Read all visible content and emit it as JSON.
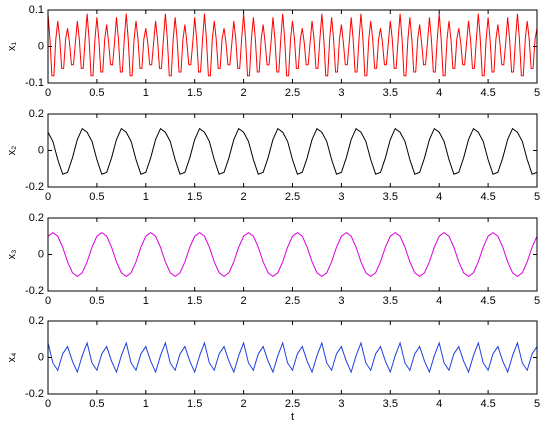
{
  "chart_data": [
    {
      "type": "line",
      "ylabel": "x₁",
      "color": "#ff0000",
      "x": [
        0,
        0.02,
        0.04,
        0.06,
        0.08,
        0.1,
        0.12,
        0.14,
        0.16,
        0.18,
        0.2,
        0.22,
        0.24,
        0.26,
        0.28,
        0.3,
        0.32,
        0.34,
        0.36,
        0.38,
        0.4,
        0.42,
        0.44,
        0.46,
        0.48,
        0.5,
        0.52,
        0.54,
        0.56,
        0.58,
        0.6,
        0.62,
        0.64,
        0.66,
        0.68,
        0.7,
        0.72,
        0.74,
        0.76,
        0.78,
        0.8,
        0.82,
        0.84,
        0.86,
        0.88,
        0.9,
        0.92,
        0.94,
        0.96,
        0.98,
        1,
        1.02,
        1.04,
        1.06,
        1.08,
        1.1,
        1.12,
        1.14,
        1.16,
        1.18,
        1.2,
        1.22,
        1.24,
        1.26,
        1.28,
        1.3,
        1.32,
        1.34,
        1.36,
        1.38,
        1.4,
        1.42,
        1.44,
        1.46,
        1.48,
        1.5,
        1.52,
        1.54,
        1.56,
        1.58,
        1.6,
        1.62,
        1.64,
        1.66,
        1.68,
        1.7,
        1.72,
        1.74,
        1.76,
        1.78,
        1.8,
        1.82,
        1.84,
        1.86,
        1.88,
        1.9,
        1.92,
        1.94,
        1.96,
        1.98,
        2,
        2.02,
        2.04,
        2.06,
        2.08,
        2.1,
        2.12,
        2.14,
        2.16,
        2.18,
        2.2,
        2.22,
        2.24,
        2.26,
        2.28,
        2.3,
        2.32,
        2.34,
        2.36,
        2.38,
        2.4,
        2.42,
        2.44,
        2.46,
        2.48,
        2.5,
        2.52,
        2.54,
        2.56,
        2.58,
        2.6,
        2.62,
        2.64,
        2.66,
        2.68,
        2.7,
        2.72,
        2.74,
        2.76,
        2.78,
        2.8,
        2.82,
        2.84,
        2.86,
        2.88,
        2.9,
        2.92,
        2.94,
        2.96,
        2.98,
        3,
        3.02,
        3.04,
        3.06,
        3.08,
        3.1,
        3.12,
        3.14,
        3.16,
        3.18,
        3.2,
        3.22,
        3.24,
        3.26,
        3.28,
        3.3,
        3.32,
        3.34,
        3.36,
        3.38,
        3.4,
        3.42,
        3.44,
        3.46,
        3.48,
        3.5,
        3.52,
        3.54,
        3.56,
        3.58,
        3.6,
        3.62,
        3.64,
        3.66,
        3.68,
        3.7,
        3.72,
        3.74,
        3.76,
        3.78,
        3.8,
        3.82,
        3.84,
        3.86,
        3.88,
        3.9,
        3.92,
        3.94,
        3.96,
        3.98,
        4,
        4.02,
        4.04,
        4.06,
        4.08,
        4.1,
        4.12,
        4.14,
        4.16,
        4.18,
        4.2,
        4.22,
        4.24,
        4.26,
        4.28,
        4.3,
        4.32,
        4.34,
        4.36,
        4.38,
        4.4,
        4.42,
        4.44,
        4.46,
        4.48,
        4.5,
        4.52,
        4.54,
        4.56,
        4.58,
        4.6,
        4.62,
        4.64,
        4.66,
        4.68,
        4.7,
        4.72,
        4.74,
        4.76,
        4.78,
        4.8,
        4.82,
        4.84,
        4.86,
        4.88,
        4.9,
        4.92,
        4.94,
        4.96,
        4.98,
        5
      ],
      "values": [
        0.09,
        0.02,
        -0.08,
        -0.08,
        0.02,
        0.07,
        0.02,
        -0.06,
        -0.06,
        0.02,
        0.05,
        0.01,
        -0.05,
        -0.05,
        0.01,
        0.07,
        0.02,
        -0.06,
        -0.06,
        0.02,
        0.09,
        0.02,
        -0.08,
        -0.08,
        0.02,
        0.08,
        0.02,
        -0.07,
        -0.07,
        0.02,
        0.06,
        0.01,
        -0.05,
        -0.05,
        0.01,
        0.08,
        0.02,
        -0.07,
        -0.07,
        0.02,
        0.09,
        0.02,
        -0.08,
        -0.08,
        0.02,
        0.07,
        0.02,
        -0.06,
        -0.06,
        0.02,
        0.05,
        0.01,
        -0.05,
        -0.05,
        0.01,
        0.07,
        0.02,
        -0.06,
        -0.06,
        0.02,
        0.09,
        0.02,
        -0.08,
        -0.08,
        0.02,
        0.08,
        0.02,
        -0.07,
        -0.07,
        0.02,
        0.06,
        0.01,
        -0.05,
        -0.05,
        0.01,
        0.08,
        0.02,
        -0.07,
        -0.07,
        0.02,
        0.09,
        0.02,
        -0.08,
        -0.08,
        0.02,
        0.07,
        0.02,
        -0.06,
        -0.06,
        0.02,
        0.05,
        0.01,
        -0.05,
        -0.05,
        0.01,
        0.07,
        0.02,
        -0.06,
        -0.06,
        0.02,
        0.09,
        0.02,
        -0.08,
        -0.08,
        0.02,
        0.08,
        0.02,
        -0.07,
        -0.07,
        0.02,
        0.06,
        0.01,
        -0.05,
        -0.05,
        0.01,
        0.08,
        0.02,
        -0.07,
        -0.07,
        0.02,
        0.09,
        0.02,
        -0.08,
        -0.08,
        0.02,
        0.07,
        0.02,
        -0.06,
        -0.06,
        0.02,
        0.05,
        0.01,
        -0.05,
        -0.05,
        0.01,
        0.07,
        0.02,
        -0.06,
        -0.06,
        0.02,
        0.09,
        0.02,
        -0.08,
        -0.08,
        0.02,
        0.08,
        0.02,
        -0.07,
        -0.07,
        0.02,
        0.06,
        0.01,
        -0.05,
        -0.05,
        0.01,
        0.08,
        0.02,
        -0.07,
        -0.07,
        0.02,
        0.09,
        0.02,
        -0.08,
        -0.08,
        0.02,
        0.07,
        0.02,
        -0.06,
        -0.06,
        0.02,
        0.05,
        0.01,
        -0.05,
        -0.05,
        0.01,
        0.07,
        0.02,
        -0.06,
        -0.06,
        0.02,
        0.09,
        0.02,
        -0.08,
        -0.08,
        0.02,
        0.08,
        0.02,
        -0.07,
        -0.07,
        0.02,
        0.06,
        0.01,
        -0.05,
        -0.05,
        0.01,
        0.08,
        0.02,
        -0.07,
        -0.07,
        0.02,
        0.09,
        0.02,
        -0.08,
        -0.08,
        0.02,
        0.07,
        0.02,
        -0.06,
        -0.06,
        0.02,
        0.05,
        0.01,
        -0.05,
        -0.05,
        0.01,
        0.07,
        0.02,
        -0.06,
        -0.06,
        0.02,
        0.09,
        0.02,
        -0.08,
        -0.08,
        0.02,
        0.08,
        0.02,
        -0.07,
        -0.07,
        0.02,
        0.06,
        0.01,
        -0.05,
        -0.05,
        0.01,
        0.08,
        0.02,
        -0.07,
        -0.07,
        0.02,
        0.09,
        0.02,
        -0.08,
        -0.08,
        0.02,
        0.07,
        0.02,
        -0.06,
        -0.06,
        0.02,
        0.05
      ],
      "xlim": [
        0,
        5
      ],
      "xticks": [
        0,
        0.5,
        1,
        1.5,
        2,
        2.5,
        3,
        3.5,
        4,
        4.5,
        5
      ],
      "ylim": [
        -0.1,
        0.1
      ],
      "yticks": [
        -0.1,
        0,
        0.1
      ]
    },
    {
      "type": "line",
      "ylabel": "x₂",
      "color": "#000000",
      "x": [
        0,
        0.05,
        0.1,
        0.15,
        0.2,
        0.25,
        0.3,
        0.35,
        0.4,
        0.45,
        0.5,
        0.55,
        0.6,
        0.65,
        0.7,
        0.75,
        0.8,
        0.85,
        0.9,
        0.95,
        1,
        1.05,
        1.1,
        1.15,
        1.2,
        1.25,
        1.3,
        1.35,
        1.4,
        1.45,
        1.5,
        1.55,
        1.6,
        1.65,
        1.7,
        1.75,
        1.8,
        1.85,
        1.9,
        1.95,
        2,
        2.05,
        2.1,
        2.15,
        2.2,
        2.25,
        2.3,
        2.35,
        2.4,
        2.45,
        2.5,
        2.55,
        2.6,
        2.65,
        2.7,
        2.75,
        2.8,
        2.85,
        2.9,
        2.95,
        3,
        3.05,
        3.1,
        3.15,
        3.2,
        3.25,
        3.3,
        3.35,
        3.4,
        3.45,
        3.5,
        3.55,
        3.6,
        3.65,
        3.7,
        3.75,
        3.8,
        3.85,
        3.9,
        3.95,
        4,
        4.05,
        4.1,
        4.15,
        4.2,
        4.25,
        4.3,
        4.35,
        4.4,
        4.45,
        4.5,
        4.55,
        4.6,
        4.65,
        4.7,
        4.75,
        4.8,
        4.85,
        4.9,
        4.95,
        5
      ],
      "values": [
        0.1,
        0.05,
        -0.05,
        -0.13,
        -0.12,
        -0.04,
        0.06,
        0.12,
        0.1,
        0.05,
        -0.05,
        -0.13,
        -0.12,
        -0.04,
        0.06,
        0.12,
        0.1,
        0.05,
        -0.05,
        -0.13,
        -0.12,
        -0.04,
        0.06,
        0.12,
        0.1,
        0.05,
        -0.05,
        -0.13,
        -0.12,
        -0.04,
        0.06,
        0.12,
        0.1,
        0.05,
        -0.05,
        -0.13,
        -0.12,
        -0.04,
        0.06,
        0.12,
        0.1,
        0.05,
        -0.05,
        -0.13,
        -0.12,
        -0.04,
        0.06,
        0.12,
        0.1,
        0.05,
        -0.05,
        -0.13,
        -0.12,
        -0.04,
        0.06,
        0.12,
        0.1,
        0.05,
        -0.05,
        -0.13,
        -0.12,
        -0.04,
        0.06,
        0.12,
        0.1,
        0.05,
        -0.05,
        -0.13,
        -0.12,
        -0.04,
        0.06,
        0.12,
        0.1,
        0.05,
        -0.05,
        -0.13,
        -0.12,
        -0.04,
        0.06,
        0.12,
        0.1,
        0.05,
        -0.05,
        -0.13,
        -0.12,
        -0.04,
        0.06,
        0.12,
        0.1,
        0.05,
        -0.05,
        -0.13,
        -0.12,
        -0.04,
        0.06,
        0.12,
        0.1,
        0.05,
        -0.05,
        -0.13,
        -0.12
      ],
      "xlim": [
        0,
        5
      ],
      "xticks": [
        0,
        0.5,
        1,
        1.5,
        2,
        2.5,
        3,
        3.5,
        4,
        4.5,
        5
      ],
      "ylim": [
        -0.2,
        0.2
      ],
      "yticks": [
        -0.2,
        0,
        0.2
      ]
    },
    {
      "type": "line",
      "ylabel": "x₃",
      "color": "#dd00dd",
      "x": [
        0,
        0.05,
        0.1,
        0.15,
        0.2,
        0.25,
        0.3,
        0.35,
        0.4,
        0.45,
        0.5,
        0.55,
        0.6,
        0.65,
        0.7,
        0.75,
        0.8,
        0.85,
        0.9,
        0.95,
        1,
        1.05,
        1.1,
        1.15,
        1.2,
        1.25,
        1.3,
        1.35,
        1.4,
        1.45,
        1.5,
        1.55,
        1.6,
        1.65,
        1.7,
        1.75,
        1.8,
        1.85,
        1.9,
        1.95,
        2,
        2.05,
        2.1,
        2.15,
        2.2,
        2.25,
        2.3,
        2.35,
        2.4,
        2.45,
        2.5,
        2.55,
        2.6,
        2.65,
        2.7,
        2.75,
        2.8,
        2.85,
        2.9,
        2.95,
        3,
        3.05,
        3.1,
        3.15,
        3.2,
        3.25,
        3.3,
        3.35,
        3.4,
        3.45,
        3.5,
        3.55,
        3.6,
        3.65,
        3.7,
        3.75,
        3.8,
        3.85,
        3.9,
        3.95,
        4,
        4.05,
        4.1,
        4.15,
        4.2,
        4.25,
        4.3,
        4.35,
        4.4,
        4.45,
        4.5,
        4.55,
        4.6,
        4.65,
        4.7,
        4.75,
        4.8,
        4.85,
        4.9,
        4.95,
        5
      ],
      "values": [
        0.1,
        0.12,
        0.1,
        0.04,
        -0.04,
        -0.1,
        -0.12,
        -0.1,
        -0.04,
        0.04,
        0.1,
        0.12,
        0.1,
        0.04,
        -0.04,
        -0.1,
        -0.12,
        -0.1,
        -0.04,
        0.04,
        0.1,
        0.12,
        0.1,
        0.04,
        -0.04,
        -0.1,
        -0.12,
        -0.1,
        -0.04,
        0.04,
        0.1,
        0.12,
        0.1,
        0.04,
        -0.04,
        -0.1,
        -0.12,
        -0.1,
        -0.04,
        0.04,
        0.1,
        0.12,
        0.1,
        0.04,
        -0.04,
        -0.1,
        -0.12,
        -0.1,
        -0.04,
        0.04,
        0.1,
        0.12,
        0.1,
        0.04,
        -0.04,
        -0.1,
        -0.12,
        -0.1,
        -0.04,
        0.04,
        0.1,
        0.12,
        0.1,
        0.04,
        -0.04,
        -0.1,
        -0.12,
        -0.1,
        -0.04,
        0.04,
        0.1,
        0.12,
        0.1,
        0.04,
        -0.04,
        -0.1,
        -0.12,
        -0.1,
        -0.04,
        0.04,
        0.1,
        0.12,
        0.1,
        0.04,
        -0.04,
        -0.1,
        -0.12,
        -0.1,
        -0.04,
        0.04,
        0.1,
        0.12,
        0.1,
        0.04,
        -0.04,
        -0.1,
        -0.12,
        -0.1,
        -0.04,
        0.04,
        0.1
      ],
      "xlim": [
        0,
        5
      ],
      "xticks": [
        0,
        0.5,
        1,
        1.5,
        2,
        2.5,
        3,
        3.5,
        4,
        4.5,
        5
      ],
      "ylim": [
        -0.2,
        0.2
      ],
      "yticks": [
        -0.2,
        0,
        0.2
      ]
    },
    {
      "type": "line",
      "ylabel": "x₄",
      "xlabel": "t",
      "color": "#2040e0",
      "x": [
        0,
        0.05,
        0.1,
        0.15,
        0.2,
        0.25,
        0.3,
        0.35,
        0.4,
        0.45,
        0.5,
        0.55,
        0.6,
        0.65,
        0.7,
        0.75,
        0.8,
        0.85,
        0.9,
        0.95,
        1,
        1.05,
        1.1,
        1.15,
        1.2,
        1.25,
        1.3,
        1.35,
        1.4,
        1.45,
        1.5,
        1.55,
        1.6,
        1.65,
        1.7,
        1.75,
        1.8,
        1.85,
        1.9,
        1.95,
        2,
        2.05,
        2.1,
        2.15,
        2.2,
        2.25,
        2.3,
        2.35,
        2.4,
        2.45,
        2.5,
        2.55,
        2.6,
        2.65,
        2.7,
        2.75,
        2.8,
        2.85,
        2.9,
        2.95,
        3,
        3.05,
        3.1,
        3.15,
        3.2,
        3.25,
        3.3,
        3.35,
        3.4,
        3.45,
        3.5,
        3.55,
        3.6,
        3.65,
        3.7,
        3.75,
        3.8,
        3.85,
        3.9,
        3.95,
        4,
        4.05,
        4.1,
        4.15,
        4.2,
        4.25,
        4.3,
        4.35,
        4.4,
        4.45,
        4.5,
        4.55,
        4.6,
        4.65,
        4.7,
        4.75,
        4.8,
        4.85,
        4.9,
        4.95,
        5
      ],
      "values": [
        0.08,
        -0.03,
        -0.07,
        0.02,
        0.06,
        -0.02,
        -0.08,
        0.01,
        0.08,
        -0.03,
        -0.07,
        0.02,
        0.06,
        -0.02,
        -0.08,
        0.01,
        0.08,
        -0.03,
        -0.07,
        0.02,
        0.06,
        -0.02,
        -0.08,
        0.01,
        0.08,
        -0.03,
        -0.07,
        0.02,
        0.06,
        -0.02,
        -0.08,
        0.01,
        0.08,
        -0.03,
        -0.07,
        0.02,
        0.06,
        -0.02,
        -0.08,
        0.01,
        0.08,
        -0.03,
        -0.07,
        0.02,
        0.06,
        -0.02,
        -0.08,
        0.01,
        0.08,
        -0.03,
        -0.07,
        0.02,
        0.06,
        -0.02,
        -0.08,
        0.01,
        0.08,
        -0.03,
        -0.07,
        0.02,
        0.06,
        -0.02,
        -0.08,
        0.01,
        0.08,
        -0.03,
        -0.07,
        0.02,
        0.06,
        -0.02,
        -0.08,
        0.01,
        0.08,
        -0.03,
        -0.07,
        0.02,
        0.06,
        -0.02,
        -0.08,
        0.01,
        0.08,
        -0.03,
        -0.07,
        0.02,
        0.06,
        -0.02,
        -0.08,
        0.01,
        0.08,
        -0.03,
        -0.07,
        0.02,
        0.06,
        -0.02,
        -0.08,
        0.01,
        0.08,
        -0.03,
        -0.07,
        0.02,
        0.06
      ],
      "xlim": [
        0,
        5
      ],
      "xticks": [
        0,
        0.5,
        1,
        1.5,
        2,
        2.5,
        3,
        3.5,
        4,
        4.5,
        5
      ],
      "ylim": [
        -0.2,
        0.2
      ],
      "yticks": [
        -0.2,
        0,
        0.2
      ]
    }
  ]
}
